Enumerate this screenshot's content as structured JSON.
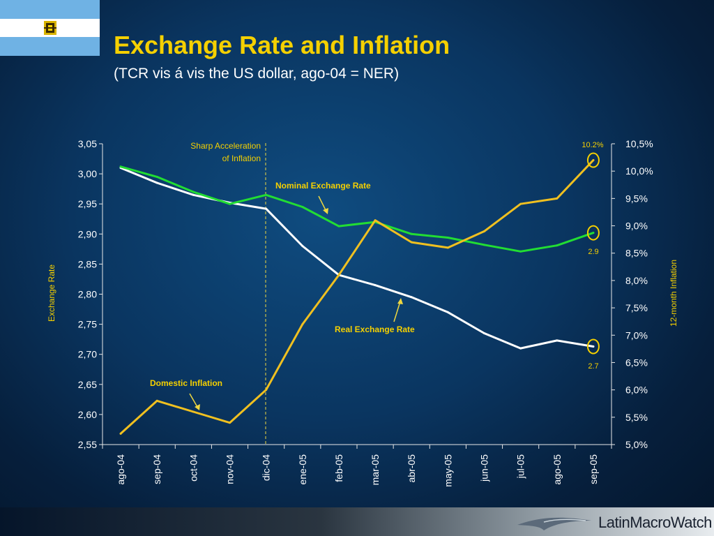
{
  "title": "Exchange Rate and Inflation",
  "subtitle": "(TCR vis á vis the US dollar, ago-04 = NER)",
  "logo_text": "LatinMacroWatch",
  "colors": {
    "title": "#f5d000",
    "real_exchange_rate": "#ffffff",
    "nominal_exchange_rate": "#22dd33",
    "domestic_inflation": "#f0c020",
    "flag_blue": "#6fb2e4"
  },
  "chart_data": {
    "type": "line",
    "categories": [
      "ago-04",
      "sep-04",
      "oct-04",
      "nov-04",
      "dic-04",
      "ene-05",
      "feb-05",
      "mar-05",
      "abr-05",
      "may-05",
      "jun-05",
      "jul-05",
      "ago-05",
      "sep-05"
    ],
    "ylabel": "Exchange Rate",
    "y2label": "12-month Inflation",
    "ylim": [
      2.55,
      3.05
    ],
    "y2lim": [
      5.0,
      10.5
    ],
    "yticks": [
      "3,05",
      "3,00",
      "2,95",
      "2,90",
      "2,85",
      "2,80",
      "2,75",
      "2,70",
      "2,65",
      "2,60",
      "2,55"
    ],
    "y2ticks": [
      "10,5%",
      "10,0%",
      "9,5%",
      "9,0%",
      "8,5%",
      "8,0%",
      "7,5%",
      "7,0%",
      "6,5%",
      "6,0%",
      "5,5%",
      "5,0%"
    ],
    "series": [
      {
        "name": "Real Exchange Rate",
        "axis": "left",
        "values": [
          3.01,
          2.985,
          2.965,
          2.952,
          2.942,
          2.88,
          2.832,
          2.815,
          2.795,
          2.77,
          2.735,
          2.71,
          2.723,
          2.713
        ]
      },
      {
        "name": "Nominal Exchange Rate",
        "axis": "left",
        "values": [
          3.012,
          2.995,
          2.97,
          2.95,
          2.965,
          2.945,
          2.913,
          2.92,
          2.9,
          2.894,
          2.882,
          2.871,
          2.881,
          2.902
        ]
      },
      {
        "name": "Domestic Inflation",
        "axis": "right",
        "values": [
          5.2,
          5.8,
          5.6,
          5.4,
          6.0,
          7.2,
          8.1,
          9.1,
          8.7,
          8.6,
          8.9,
          9.4,
          9.5,
          10.2
        ]
      }
    ],
    "annotations": {
      "vline_label_1": "Sharp Acceleration",
      "vline_label_2": "of Inflation",
      "vline_category": "dic-04",
      "end_label_inflation": "10.2%",
      "end_label_nominal": "2.9",
      "end_label_real": "2.7"
    }
  }
}
